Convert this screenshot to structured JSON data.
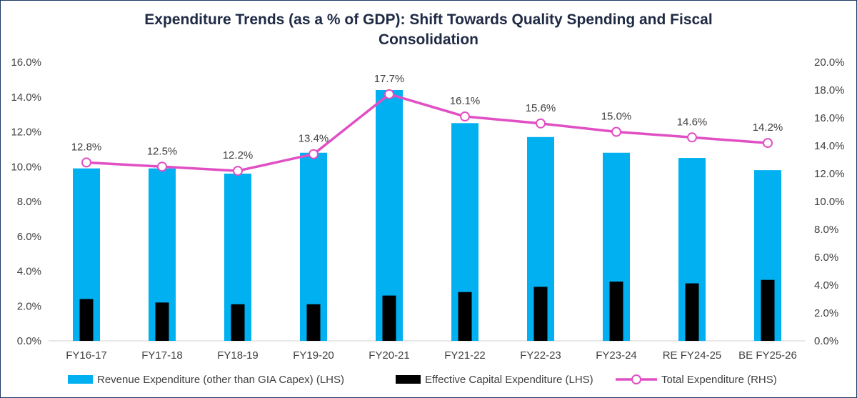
{
  "chart_data": {
    "type": "bar",
    "title_lines": [
      "Expenditure Trends (as a % of GDP): Shift Towards Quality Spending and Fiscal",
      "Consolidation"
    ],
    "categories": [
      "FY16-17",
      "FY17-18",
      "FY18-19",
      "FY19-20",
      "FY20-21",
      "FY21-22",
      "FY22-23",
      "FY23-24",
      "RE FY24-25",
      "BE FY25-26"
    ],
    "series": [
      {
        "name": "Revenue Expenditure (other than GIA Capex) (LHS)",
        "type": "bar",
        "axis": "left",
        "color": "#00b0f0",
        "values": [
          9.9,
          9.9,
          9.6,
          10.8,
          14.4,
          12.5,
          11.7,
          10.8,
          10.5,
          9.8
        ]
      },
      {
        "name": "Effective Capital Expenditure (LHS)",
        "type": "bar",
        "axis": "left",
        "color": "#000000",
        "values": [
          2.4,
          2.2,
          2.1,
          2.1,
          2.6,
          2.8,
          3.1,
          3.4,
          3.3,
          3.5
        ]
      },
      {
        "name": "Total Expenditure (RHS)",
        "type": "line",
        "axis": "right",
        "color": "#e04fc4",
        "values": [
          12.8,
          12.5,
          12.2,
          13.4,
          17.7,
          16.1,
          15.6,
          15.0,
          14.6,
          14.2
        ],
        "data_labels": [
          "12.8%",
          "12.5%",
          "12.2%",
          "13.4%",
          "17.7%",
          "16.1%",
          "15.6%",
          "15.0%",
          "14.6%",
          "14.2%"
        ]
      }
    ],
    "left_axis": {
      "range": [
        0,
        16
      ],
      "ticks": [
        0,
        2,
        4,
        6,
        8,
        10,
        12,
        14,
        16
      ],
      "tick_labels": [
        "0.0%",
        "2.0%",
        "4.0%",
        "6.0%",
        "8.0%",
        "10.0%",
        "12.0%",
        "14.0%",
        "16.0%"
      ]
    },
    "right_axis": {
      "range": [
        0,
        20
      ],
      "ticks": [
        0,
        2,
        4,
        6,
        8,
        10,
        12,
        14,
        16,
        18,
        20
      ],
      "tick_labels": [
        "0.0%",
        "2.0%",
        "4.0%",
        "6.0%",
        "8.0%",
        "10.0%",
        "12.0%",
        "14.0%",
        "16.0%",
        "18.0%",
        "20.0%"
      ]
    },
    "grid": false,
    "legend_position": "bottom"
  }
}
